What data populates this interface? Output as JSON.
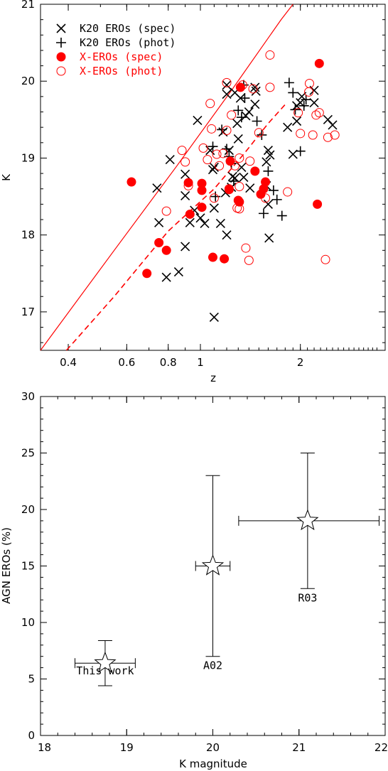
{
  "chart_data": [
    {
      "type": "scatter",
      "title": "",
      "xlabel": "z",
      "ylabel": "K",
      "x_scale": "log",
      "xlim": [
        0.33,
        3.6
      ],
      "ylim": [
        16.5,
        21
      ],
      "x_ticks": [
        0.4,
        0.6,
        0.8,
        1,
        2
      ],
      "x_tick_labels": [
        "0.4",
        "0.6",
        "0.8",
        "1",
        "2"
      ],
      "y_ticks": [
        17,
        18,
        19,
        20,
        21
      ],
      "y_tick_labels": [
        "17",
        "18",
        "19",
        "20",
        "21"
      ],
      "grid": false,
      "legend_position": "top-left",
      "series": [
        {
          "name": "K20 EROs (spec)",
          "marker": "x",
          "color": "#000000",
          "points": [
            [
              0.74,
              18.61
            ],
            [
              0.75,
              18.16
            ],
            [
              0.79,
              17.45
            ],
            [
              0.81,
              18.98
            ],
            [
              0.86,
              17.52
            ],
            [
              0.9,
              17.85
            ],
            [
              0.9,
              18.51
            ],
            [
              0.9,
              18.79
            ],
            [
              0.93,
              18.16
            ],
            [
              0.96,
              18.32
            ],
            [
              0.98,
              19.49
            ],
            [
              1.0,
              18.22
            ],
            [
              1.03,
              18.15
            ],
            [
              1.07,
              19.1
            ],
            [
              1.09,
              18.85
            ],
            [
              1.1,
              18.88
            ],
            [
              1.1,
              16.93
            ],
            [
              1.1,
              18.35
            ],
            [
              1.15,
              18.15
            ],
            [
              1.17,
              19.34
            ],
            [
              1.19,
              18.55
            ],
            [
              1.2,
              19.95
            ],
            [
              1.2,
              19.83
            ],
            [
              1.2,
              18.0
            ],
            [
              1.22,
              19.1
            ],
            [
              1.24,
              18.62
            ],
            [
              1.25,
              18.76
            ],
            [
              1.27,
              19.85
            ],
            [
              1.27,
              18.74
            ],
            [
              1.29,
              19.45
            ],
            [
              1.3,
              19.25
            ],
            [
              1.32,
              19.78
            ],
            [
              1.33,
              18.88
            ],
            [
              1.35,
              18.75
            ],
            [
              1.37,
              19.55
            ],
            [
              1.4,
              19.6
            ],
            [
              1.41,
              18.61
            ],
            [
              1.46,
              19.92
            ],
            [
              1.46,
              19.7
            ],
            [
              1.47,
              19.87
            ],
            [
              1.58,
              18.64
            ],
            [
              1.58,
              18.95
            ],
            [
              1.6,
              18.4
            ],
            [
              1.61,
              17.96
            ],
            [
              1.6,
              19.1
            ],
            [
              1.62,
              19.04
            ],
            [
              1.83,
              19.4
            ],
            [
              1.9,
              19.05
            ],
            [
              1.95,
              19.48
            ],
            [
              1.95,
              19.68
            ],
            [
              2.0,
              19.72
            ],
            [
              2.02,
              19.8
            ],
            [
              2.2,
              19.88
            ],
            [
              2.2,
              19.72
            ],
            [
              2.42,
              19.5
            ],
            [
              2.5,
              19.43
            ]
          ]
        },
        {
          "name": "K20 EROs (phot)",
          "marker": "+",
          "color": "#000000",
          "points": [
            [
              1.09,
              19.15
            ],
            [
              1.11,
              18.5
            ],
            [
              1.16,
              19.37
            ],
            [
              1.2,
              19.12
            ],
            [
              1.22,
              19.02
            ],
            [
              1.24,
              18.93
            ],
            [
              1.26,
              18.7
            ],
            [
              1.3,
              19.62
            ],
            [
              1.33,
              19.53
            ],
            [
              1.35,
              19.95
            ],
            [
              1.36,
              19.78
            ],
            [
              1.48,
              19.48
            ],
            [
              1.53,
              19.3
            ],
            [
              1.55,
              18.28
            ],
            [
              1.6,
              18.83
            ],
            [
              1.66,
              18.58
            ],
            [
              1.7,
              18.46
            ],
            [
              1.76,
              18.25
            ],
            [
              1.85,
              19.98
            ],
            [
              1.9,
              19.85
            ],
            [
              1.93,
              19.63
            ],
            [
              2.0,
              19.09
            ],
            [
              2.05,
              19.68
            ],
            [
              2.08,
              19.76
            ]
          ]
        },
        {
          "name": "X-EROs (spec)",
          "marker": "filled-circle",
          "color": "#ff0000",
          "points": [
            [
              0.62,
              18.69
            ],
            [
              0.69,
              17.5
            ],
            [
              0.75,
              17.9
            ],
            [
              0.79,
              17.8
            ],
            [
              0.92,
              18.68
            ],
            [
              0.93,
              18.27
            ],
            [
              1.01,
              18.36
            ],
            [
              1.01,
              18.67
            ],
            [
              1.01,
              18.58
            ],
            [
              1.09,
              17.71
            ],
            [
              1.18,
              17.69
            ],
            [
              1.22,
              18.59
            ],
            [
              1.23,
              18.96
            ],
            [
              1.3,
              18.45
            ],
            [
              1.31,
              18.43
            ],
            [
              1.32,
              19.92
            ],
            [
              1.46,
              18.83
            ],
            [
              1.52,
              18.53
            ],
            [
              1.55,
              18.6
            ],
            [
              1.57,
              18.69
            ],
            [
              2.25,
              18.4
            ],
            [
              2.28,
              20.23
            ]
          ]
        },
        {
          "name": "X-EROs (phot)",
          "marker": "open-circle",
          "color": "#ff0000",
          "points": [
            [
              0.79,
              18.31
            ],
            [
              0.88,
              19.1
            ],
            [
              0.9,
              18.95
            ],
            [
              0.92,
              18.64
            ],
            [
              1.02,
              19.13
            ],
            [
              1.05,
              18.98
            ],
            [
              1.07,
              19.71
            ],
            [
              1.08,
              19.38
            ],
            [
              1.1,
              18.48
            ],
            [
              1.12,
              19.05
            ],
            [
              1.14,
              18.9
            ],
            [
              1.17,
              19.06
            ],
            [
              1.2,
              19.98
            ],
            [
              1.2,
              19.36
            ],
            [
              1.22,
              18.6
            ],
            [
              1.24,
              19.56
            ],
            [
              1.27,
              18.9
            ],
            [
              1.29,
              18.35
            ],
            [
              1.31,
              18.34
            ],
            [
              1.31,
              18.63
            ],
            [
              1.31,
              19.0
            ],
            [
              1.34,
              19.95
            ],
            [
              1.37,
              17.83
            ],
            [
              1.4,
              17.67
            ],
            [
              1.41,
              18.96
            ],
            [
              1.44,
              19.9
            ],
            [
              1.5,
              19.33
            ],
            [
              1.57,
              18.48
            ],
            [
              1.62,
              20.34
            ],
            [
              1.62,
              19.92
            ],
            [
              1.83,
              18.56
            ],
            [
              1.97,
              19.59
            ],
            [
              2.0,
              19.32
            ],
            [
              2.12,
              19.86
            ],
            [
              2.13,
              19.97
            ],
            [
              2.18,
              19.3
            ],
            [
              2.23,
              19.56
            ],
            [
              2.28,
              19.59
            ],
            [
              2.38,
              17.68
            ],
            [
              2.42,
              19.27
            ],
            [
              2.54,
              19.3
            ]
          ]
        }
      ],
      "lines": [
        {
          "name": "",
          "style": "solid",
          "color": "#ff0000",
          "points": [
            [
              0.33,
              16.5
            ],
            [
              0.55,
              17.8
            ],
            [
              0.85,
              18.9
            ],
            [
              1.25,
              19.9
            ],
            [
              1.75,
              20.8
            ],
            [
              1.9,
              21.0
            ]
          ]
        },
        {
          "name": "",
          "style": "dashed",
          "color": "#ff0000",
          "points": [
            [
              0.395,
              16.5
            ],
            [
              0.55,
              17.2
            ],
            [
              0.8,
              18.05
            ],
            [
              1.1,
              18.6
            ],
            [
              1.35,
              19.05
            ],
            [
              1.6,
              19.45
            ],
            [
              1.82,
              19.72
            ]
          ]
        }
      ]
    },
    {
      "type": "scatter",
      "title": "",
      "xlabel": "K magnitude",
      "ylabel": "AGN EROs (%)",
      "xlim": [
        18,
        22
      ],
      "ylim": [
        0,
        30
      ],
      "x_ticks": [
        18,
        19,
        20,
        21,
        22
      ],
      "x_tick_labels": [
        "18",
        "19",
        "20",
        "21",
        "22"
      ],
      "y_ticks": [
        0,
        5,
        10,
        15,
        20,
        25,
        30
      ],
      "y_tick_labels": [
        "0",
        "5",
        "10",
        "15",
        "20",
        "25",
        "30"
      ],
      "grid": false,
      "series": [
        {
          "name": "",
          "marker": "open-star",
          "color": "#000000",
          "points": [
            {
              "x": 18.75,
              "y": 6.4,
              "xerr": [
                18.4,
                19.1
              ],
              "yerr": [
                4.4,
                8.4
              ],
              "label": "This work"
            },
            {
              "x": 20.0,
              "y": 15.0,
              "xerr": [
                19.8,
                20.2
              ],
              "yerr": [
                7.0,
                23.0
              ],
              "label": "A02"
            },
            {
              "x": 21.1,
              "y": 19.0,
              "xerr": [
                20.3,
                21.93
              ],
              "yerr": [
                13.0,
                25.0
              ],
              "label": "R03"
            }
          ]
        }
      ]
    }
  ]
}
